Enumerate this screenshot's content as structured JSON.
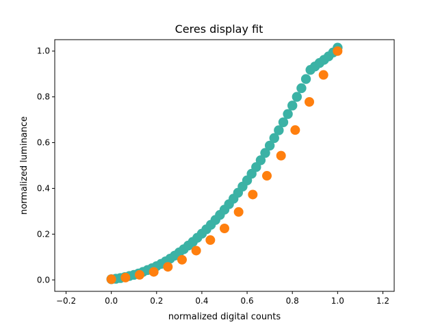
{
  "chart_data": {
    "type": "scatter",
    "title": "Ceres display fit",
    "xlabel": "normalized digital counts",
    "ylabel": "normalized luminance",
    "xlim": [
      -0.25,
      1.25
    ],
    "ylim": [
      -0.05,
      1.05
    ],
    "x_ticks": [
      -0.2,
      0.0,
      0.2,
      0.4,
      0.6,
      0.8,
      1.0,
      1.2
    ],
    "x_tick_labels": [
      "−0.2",
      "0.0",
      "0.2",
      "0.4",
      "0.6",
      "0.8",
      "1.0",
      "1.2"
    ],
    "y_ticks": [
      0.0,
      0.2,
      0.4,
      0.6,
      0.8,
      1.0
    ],
    "y_tick_labels": [
      "0.0",
      "0.2",
      "0.4",
      "0.6",
      "0.8",
      "1.0"
    ],
    "grid": false,
    "legend": "none",
    "series": [
      {
        "color": "#3bb2a5",
        "marker_style": "dense circles forming a thick curve",
        "x": [
          0.0,
          0.02,
          0.04,
          0.06,
          0.08,
          0.1,
          0.12,
          0.14,
          0.16,
          0.18,
          0.2,
          0.22,
          0.24,
          0.26,
          0.28,
          0.3,
          0.32,
          0.34,
          0.36,
          0.38,
          0.4,
          0.42,
          0.44,
          0.46,
          0.48,
          0.5,
          0.52,
          0.54,
          0.56,
          0.58,
          0.6,
          0.62,
          0.64,
          0.66,
          0.68,
          0.7,
          0.72,
          0.74,
          0.76,
          0.78,
          0.8,
          0.82,
          0.84,
          0.86,
          0.88,
          0.9,
          0.92,
          0.94,
          0.96,
          0.98,
          1.0
        ],
        "y": [
          0.003,
          0.005,
          0.008,
          0.012,
          0.017,
          0.022,
          0.028,
          0.035,
          0.043,
          0.051,
          0.06,
          0.07,
          0.081,
          0.093,
          0.106,
          0.12,
          0.134,
          0.15,
          0.166,
          0.184,
          0.202,
          0.221,
          0.241,
          0.262,
          0.284,
          0.307,
          0.331,
          0.355,
          0.381,
          0.408,
          0.435,
          0.464,
          0.493,
          0.523,
          0.555,
          0.587,
          0.62,
          0.654,
          0.689,
          0.725,
          0.762,
          0.8,
          0.838,
          0.878,
          0.918,
          0.933,
          0.948,
          0.962,
          0.977,
          0.994,
          1.015
        ]
      },
      {
        "color": "#ff7f0e",
        "marker_style": "large circles",
        "x": [
          0.0,
          0.0625,
          0.125,
          0.1875,
          0.25,
          0.3125,
          0.375,
          0.4375,
          0.5,
          0.5625,
          0.625,
          0.6875,
          0.75,
          0.8125,
          0.875,
          0.9375,
          1.0
        ],
        "y": [
          0.003,
          0.01,
          0.022,
          0.035,
          0.057,
          0.088,
          0.128,
          0.174,
          0.225,
          0.297,
          0.373,
          0.455,
          0.543,
          0.655,
          0.778,
          0.896,
          1.0
        ]
      }
    ]
  }
}
